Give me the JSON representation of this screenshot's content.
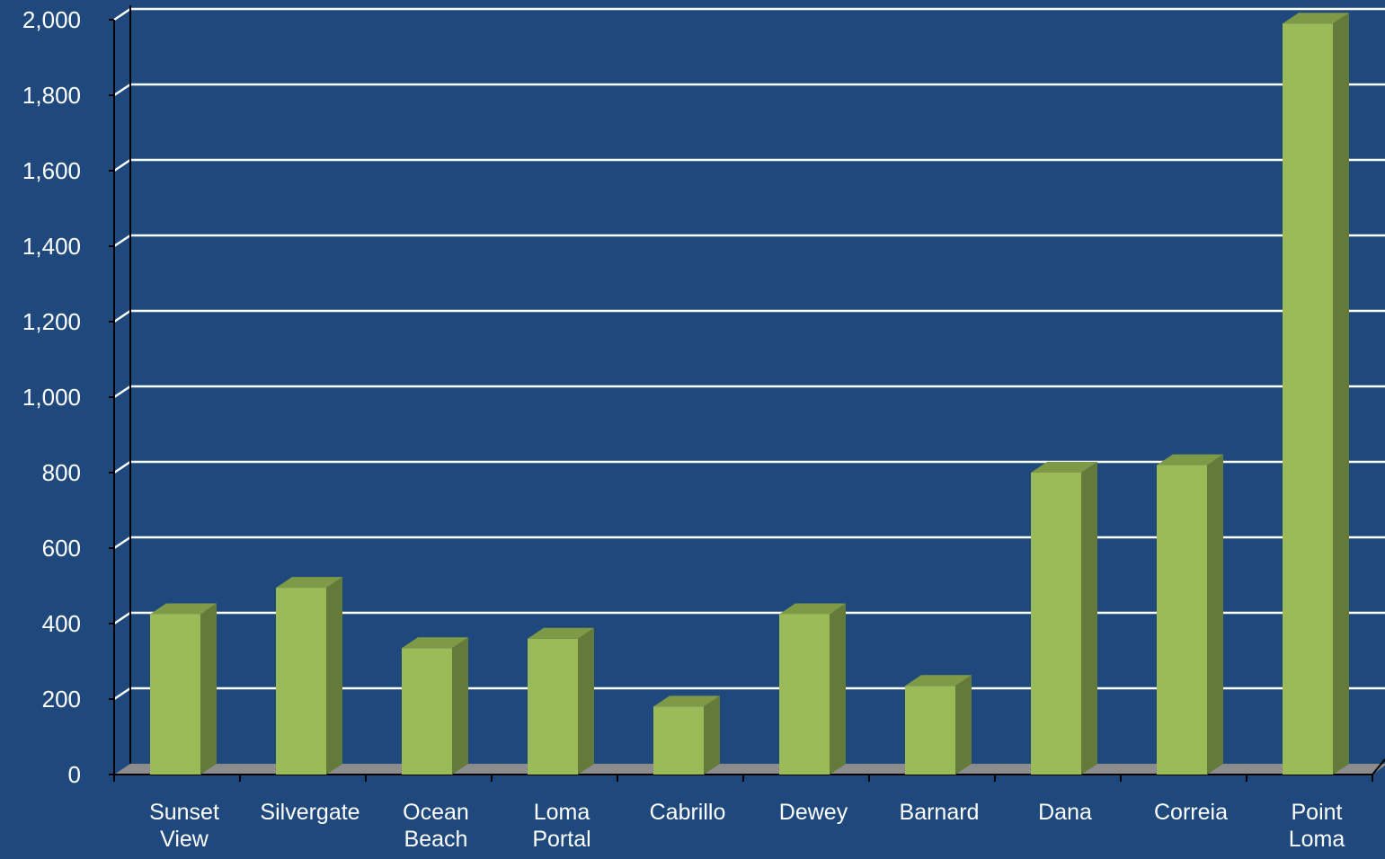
{
  "colors": {
    "background": "#1F497D",
    "plot_background": "#1F497D",
    "bar_front": "#9BBB59",
    "bar_side": "#647A3A",
    "bar_top": "#7E9A47",
    "floor": "#8C8C8C",
    "gridline": "#FFFFFF",
    "axis": "#000000",
    "text": "#FFFFFF"
  },
  "chart_data": {
    "type": "bar",
    "style": "3d-column",
    "title": "",
    "xlabel": "",
    "ylabel": "",
    "categories": [
      [
        "Sunset",
        "View"
      ],
      [
        "Silvergate"
      ],
      [
        "Ocean",
        "Beach"
      ],
      [
        "Loma",
        "Portal"
      ],
      [
        "Cabrillo"
      ],
      [
        "Dewey"
      ],
      [
        "Barnard"
      ],
      [
        "Dana"
      ],
      [
        "Correia"
      ],
      [
        "Point",
        "Loma"
      ]
    ],
    "values": [
      425,
      495,
      335,
      360,
      180,
      425,
      235,
      800,
      820,
      1990
    ],
    "ylim": [
      0,
      2000
    ],
    "yticks": [
      0,
      200,
      400,
      600,
      800,
      1000,
      1200,
      1400,
      1600,
      1800,
      2000
    ],
    "ytick_labels": [
      "0",
      "200",
      "400",
      "600",
      "800",
      "1,000",
      "1,200",
      "1,400",
      "1,600",
      "1,800",
      "2,000"
    ],
    "grid": true,
    "legend": "none"
  }
}
